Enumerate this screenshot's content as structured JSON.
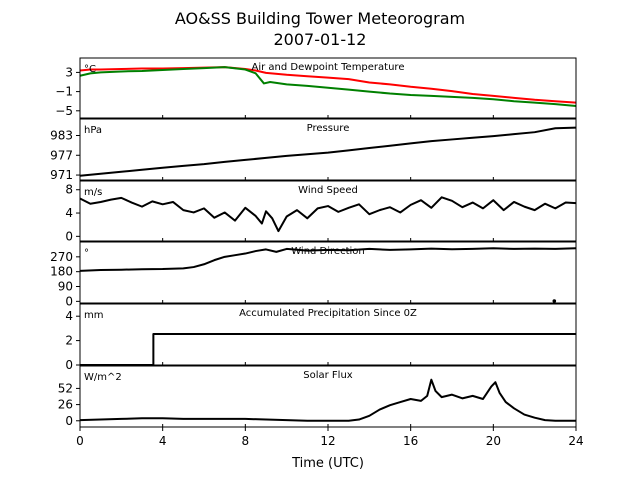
{
  "figure": {
    "title_line1": "AO&SS Building Tower Meteorogram",
    "title_line2": "2007-01-12",
    "xlabel": "Time (UTC)",
    "xticks": [
      0,
      4,
      8,
      12,
      16,
      20,
      24
    ],
    "xlim": [
      0,
      24
    ]
  },
  "chart_data": [
    {
      "type": "line",
      "title": "Air and Dewpoint Temperature",
      "unit": "°C",
      "ylim": [
        -6.5,
        6
      ],
      "yticks": [
        -5,
        -1,
        3
      ],
      "xlim": [
        0,
        24
      ],
      "series": [
        {
          "color": "#ff0000",
          "x": [
            0,
            0.5,
            1,
            2,
            3,
            4,
            5,
            6,
            7,
            8,
            8.5,
            9,
            10,
            11,
            12,
            13,
            14,
            15,
            16,
            17,
            18,
            19,
            20,
            21,
            22,
            23,
            24
          ],
          "y": [
            3.4,
            3.6,
            3.6,
            3.7,
            3.8,
            3.8,
            3.9,
            4.0,
            4.1,
            3.7,
            3.4,
            2.9,
            2.5,
            2.2,
            1.9,
            1.6,
            0.9,
            0.5,
            0.0,
            -0.4,
            -0.9,
            -1.5,
            -1.9,
            -2.3,
            -2.7,
            -3.0,
            -3.3
          ]
        },
        {
          "color": "#008000",
          "x": [
            0,
            0.5,
            1,
            2,
            3,
            4,
            5,
            6,
            7,
            8,
            8.5,
            8.9,
            9.2,
            10,
            11,
            12,
            13,
            14,
            15,
            16,
            17,
            18,
            19,
            20,
            21,
            22,
            23,
            24
          ],
          "y": [
            2.3,
            2.8,
            3.0,
            3.2,
            3.3,
            3.5,
            3.7,
            3.9,
            4.1,
            3.6,
            2.8,
            0.7,
            1.0,
            0.5,
            0.2,
            -0.2,
            -0.6,
            -1.0,
            -1.4,
            -1.7,
            -1.9,
            -2.1,
            -2.3,
            -2.6,
            -3.0,
            -3.3,
            -3.6,
            -4.0
          ]
        }
      ]
    },
    {
      "type": "line",
      "title": "Pressure",
      "unit": "hPa",
      "ylim": [
        969.5,
        988
      ],
      "yticks": [
        971,
        977,
        983
      ],
      "xlim": [
        0,
        24
      ],
      "series": [
        {
          "color": "#000000",
          "x": [
            0,
            1,
            2,
            3,
            4,
            5,
            6,
            7,
            8,
            9,
            10,
            11,
            12,
            13,
            14,
            15,
            16,
            17,
            18,
            19,
            20,
            21,
            22,
            23,
            24
          ],
          "y": [
            970.8,
            971.4,
            972.0,
            972.6,
            973.2,
            973.8,
            974.3,
            975.0,
            975.6,
            976.2,
            976.8,
            977.3,
            977.8,
            978.5,
            979.2,
            979.9,
            980.6,
            981.3,
            981.8,
            982.3,
            982.8,
            983.4,
            984.0,
            985.2,
            985.4
          ]
        }
      ]
    },
    {
      "type": "line",
      "title": "Wind Speed",
      "unit": "m/s",
      "ylim": [
        -0.8,
        9.5
      ],
      "yticks": [
        0,
        4,
        8
      ],
      "xlim": [
        0,
        24
      ],
      "series": [
        {
          "color": "#000000",
          "x": [
            0,
            0.5,
            1,
            1.5,
            2,
            2.5,
            3,
            3.5,
            4,
            4.5,
            5,
            5.5,
            6,
            6.5,
            7,
            7.5,
            8,
            8.5,
            8.8,
            9,
            9.3,
            9.6,
            10,
            10.5,
            11,
            11.5,
            12,
            12.5,
            13,
            13.5,
            14,
            14.5,
            15,
            15.5,
            16,
            16.5,
            17,
            17.5,
            18,
            18.5,
            19,
            19.5,
            20,
            20.5,
            21,
            21.5,
            22,
            22.5,
            23,
            23.5,
            24
          ],
          "y": [
            6.5,
            5.6,
            5.9,
            6.3,
            6.6,
            5.8,
            5.1,
            6.0,
            5.5,
            5.9,
            4.5,
            4.1,
            4.8,
            3.2,
            4.1,
            2.7,
            4.9,
            3.5,
            2.2,
            4.3,
            3.1,
            0.9,
            3.4,
            4.5,
            3.1,
            4.8,
            5.2,
            4.2,
            4.9,
            5.5,
            3.8,
            4.5,
            5.0,
            4.1,
            5.4,
            6.2,
            4.9,
            6.7,
            6.1,
            5.0,
            5.8,
            4.8,
            6.2,
            4.5,
            5.9,
            5.1,
            4.5,
            5.6,
            4.8,
            5.8,
            5.7
          ]
        }
      ]
    },
    {
      "type": "line",
      "title": "Wind Direction",
      "unit": "°",
      "ylim": [
        -10,
        360
      ],
      "yticks": [
        0,
        90,
        180,
        270
      ],
      "xlim": [
        0,
        24
      ],
      "series": [
        {
          "color": "#000000",
          "x": [
            0,
            1,
            2,
            3,
            4,
            5,
            5.5,
            6,
            6.5,
            7,
            7.5,
            8,
            8.5,
            9,
            9.5,
            10,
            11,
            12,
            13,
            14,
            15,
            16,
            17,
            18,
            19,
            20,
            21,
            22,
            23,
            24
          ],
          "y": [
            185,
            190,
            192,
            195,
            196,
            200,
            208,
            225,
            250,
            270,
            280,
            290,
            305,
            315,
            300,
            318,
            308,
            312,
            310,
            318,
            312,
            315,
            320,
            316,
            318,
            322,
            318,
            320,
            318,
            322
          ]
        },
        {
          "color": "#000000",
          "x": [
            22.95
          ],
          "y": [
            2
          ],
          "marker": "point"
        }
      ]
    },
    {
      "type": "line",
      "title": "Accumulated Precipitation Since 0Z",
      "unit": "mm",
      "ylim": [
        0,
        5
      ],
      "yticks": [
        0,
        2,
        4
      ],
      "xlim": [
        0,
        24
      ],
      "series": [
        {
          "color": "#000000",
          "x": [
            0,
            3.55,
            3.55,
            24
          ],
          "y": [
            0,
            0,
            2.54,
            2.54
          ]
        }
      ]
    },
    {
      "type": "line",
      "title": "Solar Flux",
      "unit": "W/m^2",
      "ylim": [
        -10,
        88
      ],
      "yticks": [
        0,
        26,
        52
      ],
      "xlim": [
        0,
        24
      ],
      "series": [
        {
          "color": "#000000",
          "x": [
            0,
            1,
            2,
            3,
            4,
            5,
            6,
            7,
            8,
            9,
            10,
            11,
            12,
            13,
            13.5,
            14,
            14.5,
            15,
            15.5,
            16,
            16.5,
            16.8,
            17,
            17.2,
            17.5,
            18,
            18.5,
            19,
            19.5,
            19.9,
            20.1,
            20.3,
            20.6,
            21,
            21.5,
            22,
            22.5,
            23,
            24
          ],
          "y": [
            1,
            2,
            3,
            4,
            4,
            3,
            3,
            3,
            3,
            2,
            1,
            0,
            0,
            0,
            2,
            8,
            18,
            25,
            30,
            35,
            32,
            40,
            66,
            48,
            38,
            42,
            36,
            40,
            35,
            55,
            62,
            45,
            30,
            20,
            10,
            5,
            1,
            0,
            0
          ]
        }
      ]
    }
  ]
}
